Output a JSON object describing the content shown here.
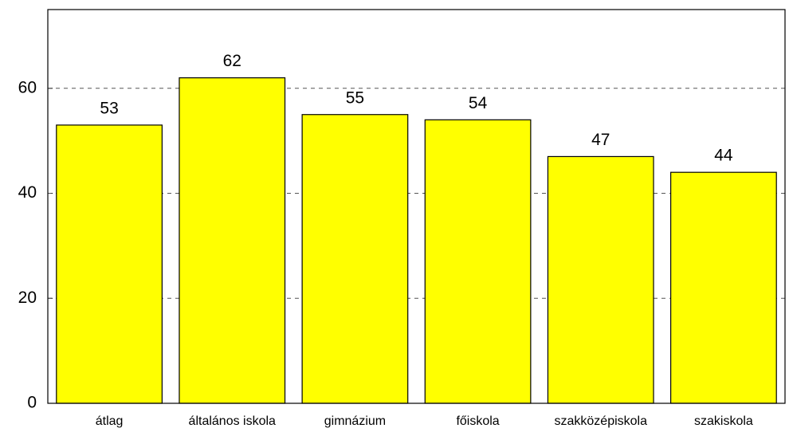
{
  "chart_data": {
    "type": "bar",
    "categories": [
      "átlag",
      "általános iskola",
      "gimnázium",
      "főiskola",
      "szakközépiskola",
      "szakiskola"
    ],
    "values": [
      53,
      62,
      55,
      54,
      47,
      44
    ],
    "color": "#ffff00",
    "ylim": [
      0,
      75
    ],
    "yticks": [
      0,
      20,
      40,
      60
    ],
    "grid": true
  }
}
